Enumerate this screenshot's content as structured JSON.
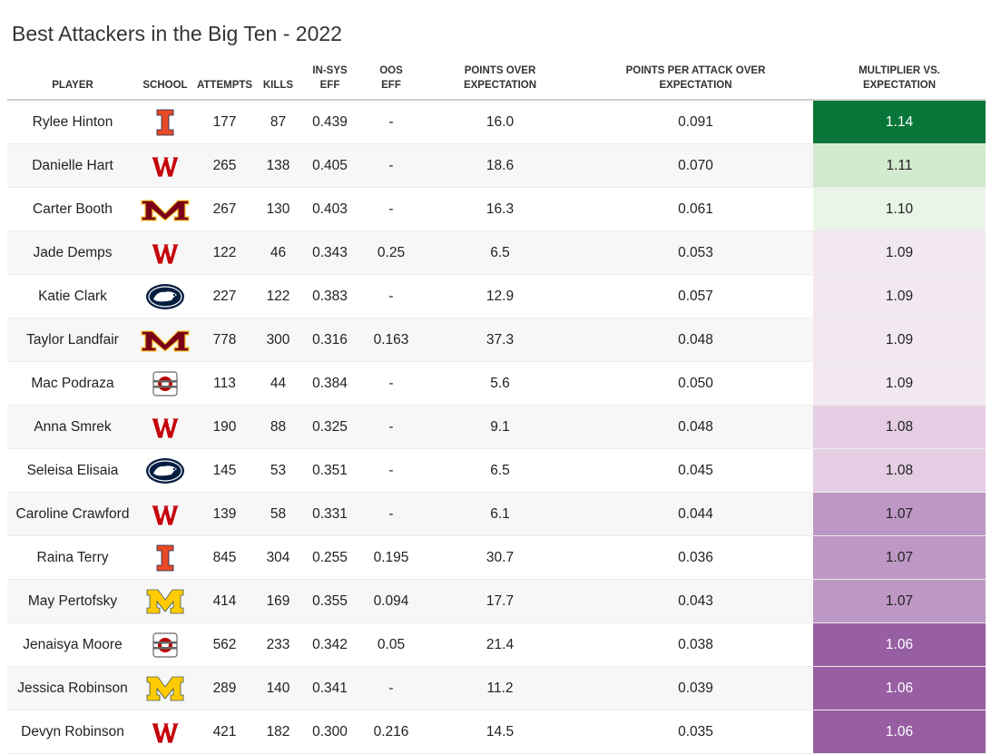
{
  "title": "Best Attackers in the Big Ten - 2022",
  "columns": {
    "player": "PLAYER",
    "school": "SCHOOL",
    "attempts": "ATTEMPTS",
    "kills": "KILLS",
    "in_sys_line1": "IN-SYS",
    "in_sys_line2": "EFF",
    "oos_line1": "OOS",
    "oos_line2": "EFF",
    "poe_line1": "POINTS OVER",
    "poe_line2": "EXPECTATION",
    "ppa_line1": "POINTS PER ATTACK OVER",
    "ppa_line2": "EXPECTATION",
    "mult_line1": "MULTIPLIER VS.",
    "mult_line2": "EXPECTATION"
  },
  "colors": {
    "illinois": "#e84a27",
    "illinois_dark": "#13294b",
    "wisconsin": "#c5050c",
    "minnesota": "#7a0019",
    "minnesota_gold": "#ffcc33",
    "penn_state": "#041e42",
    "ohio_state": "#bb0000",
    "ohio_state_gray": "#666666",
    "michigan": "#ffcb05",
    "michigan_blue": "#00274c"
  },
  "chart_data": {
    "type": "table",
    "title": "Best Attackers in the Big Ten - 2022",
    "rows": [
      {
        "player": "Rylee Hinton",
        "school": "illinois",
        "attempts": "177",
        "kills": "87",
        "in_sys": "0.439",
        "oos": "-",
        "poe": "16.0",
        "ppa": "0.091",
        "mult": "1.14"
      },
      {
        "player": "Danielle Hart",
        "school": "wisconsin",
        "attempts": "265",
        "kills": "138",
        "in_sys": "0.405",
        "oos": "-",
        "poe": "18.6",
        "ppa": "0.070",
        "mult": "1.11"
      },
      {
        "player": "Carter Booth",
        "school": "minnesota",
        "attempts": "267",
        "kills": "130",
        "in_sys": "0.403",
        "oos": "-",
        "poe": "16.3",
        "ppa": "0.061",
        "mult": "1.10"
      },
      {
        "player": "Jade Demps",
        "school": "wisconsin",
        "attempts": "122",
        "kills": "46",
        "in_sys": "0.343",
        "oos": "0.25",
        "poe": "6.5",
        "ppa": "0.053",
        "mult": "1.09"
      },
      {
        "player": "Katie Clark",
        "school": "penn-state",
        "attempts": "227",
        "kills": "122",
        "in_sys": "0.383",
        "oos": "-",
        "poe": "12.9",
        "ppa": "0.057",
        "mult": "1.09"
      },
      {
        "player": "Taylor Landfair",
        "school": "minnesota",
        "attempts": "778",
        "kills": "300",
        "in_sys": "0.316",
        "oos": "0.163",
        "poe": "37.3",
        "ppa": "0.048",
        "mult": "1.09"
      },
      {
        "player": "Mac Podraza",
        "school": "ohio-state",
        "attempts": "113",
        "kills": "44",
        "in_sys": "0.384",
        "oos": "-",
        "poe": "5.6",
        "ppa": "0.050",
        "mult": "1.09"
      },
      {
        "player": "Anna Smrek",
        "school": "wisconsin",
        "attempts": "190",
        "kills": "88",
        "in_sys": "0.325",
        "oos": "-",
        "poe": "9.1",
        "ppa": "0.048",
        "mult": "1.08"
      },
      {
        "player": "Seleisa Elisaia",
        "school": "penn-state",
        "attempts": "145",
        "kills": "53",
        "in_sys": "0.351",
        "oos": "-",
        "poe": "6.5",
        "ppa": "0.045",
        "mult": "1.08"
      },
      {
        "player": "Caroline Crawford",
        "school": "wisconsin",
        "attempts": "139",
        "kills": "58",
        "in_sys": "0.331",
        "oos": "-",
        "poe": "6.1",
        "ppa": "0.044",
        "mult": "1.07"
      },
      {
        "player": "Raina Terry",
        "school": "illinois",
        "attempts": "845",
        "kills": "304",
        "in_sys": "0.255",
        "oos": "0.195",
        "poe": "30.7",
        "ppa": "0.036",
        "mult": "1.07"
      },
      {
        "player": "May Pertofsky",
        "school": "michigan",
        "attempts": "414",
        "kills": "169",
        "in_sys": "0.355",
        "oos": "0.094",
        "poe": "17.7",
        "ppa": "0.043",
        "mult": "1.07"
      },
      {
        "player": "Jenaisya Moore",
        "school": "ohio-state",
        "attempts": "562",
        "kills": "233",
        "in_sys": "0.342",
        "oos": "0.05",
        "poe": "21.4",
        "ppa": "0.038",
        "mult": "1.06"
      },
      {
        "player": "Jessica Robinson",
        "school": "michigan",
        "attempts": "289",
        "kills": "140",
        "in_sys": "0.341",
        "oos": "-",
        "poe": "11.2",
        "ppa": "0.039",
        "mult": "1.06"
      },
      {
        "player": "Devyn Robinson",
        "school": "wisconsin",
        "attempts": "421",
        "kills": "182",
        "in_sys": "0.300",
        "oos": "0.216",
        "poe": "14.5",
        "ppa": "0.035",
        "mult": "1.06"
      }
    ],
    "multiplier_colors": {
      "1.14": "#087638",
      "1.11": "#d2ebce",
      "1.10": "#e9f5e7",
      "1.09": "#f2e8f1",
      "1.08": "#e5cde3",
      "1.07": "#bd98c5",
      "1.06": "#975ea2"
    },
    "multiplier_text_light": [
      "1.14",
      "1.06"
    ]
  }
}
